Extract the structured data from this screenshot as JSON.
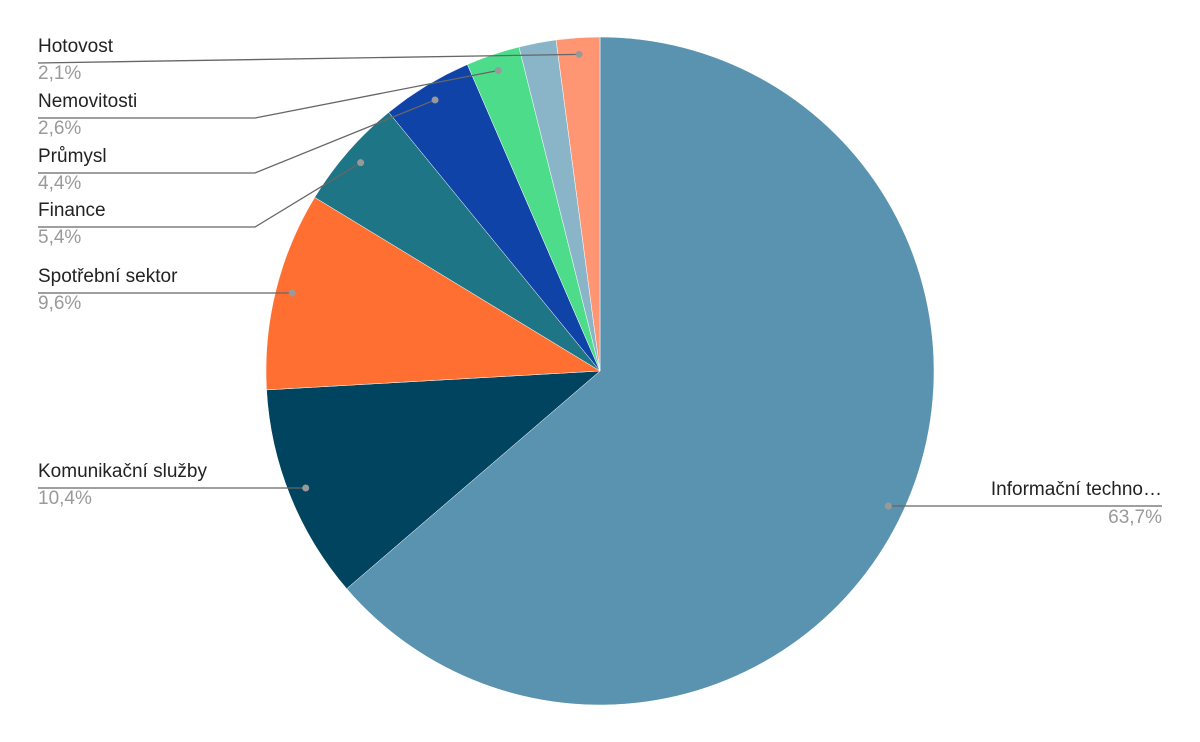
{
  "chart_data": {
    "type": "pie",
    "categories": [
      "Informační techno…",
      "Komunikační služby",
      "Spotřební sektor",
      "Finance",
      "Průmysl",
      "Nemovitosti",
      null,
      "Hotovost"
    ],
    "values": [
      63.7,
      10.4,
      9.6,
      5.4,
      4.4,
      2.6,
      1.8,
      2.1
    ],
    "value_labels": [
      "63,7%",
      "10,4%",
      "9,6%",
      "5,4%",
      "4,4%",
      "2,6%",
      null,
      "2,1%"
    ],
    "colors": [
      "#5a93b0",
      "#00445f",
      "#ff6f31",
      "#1e7585",
      "#1043a8",
      "#4ddc8a",
      "#8ab4c8",
      "#ff9673"
    ]
  }
}
